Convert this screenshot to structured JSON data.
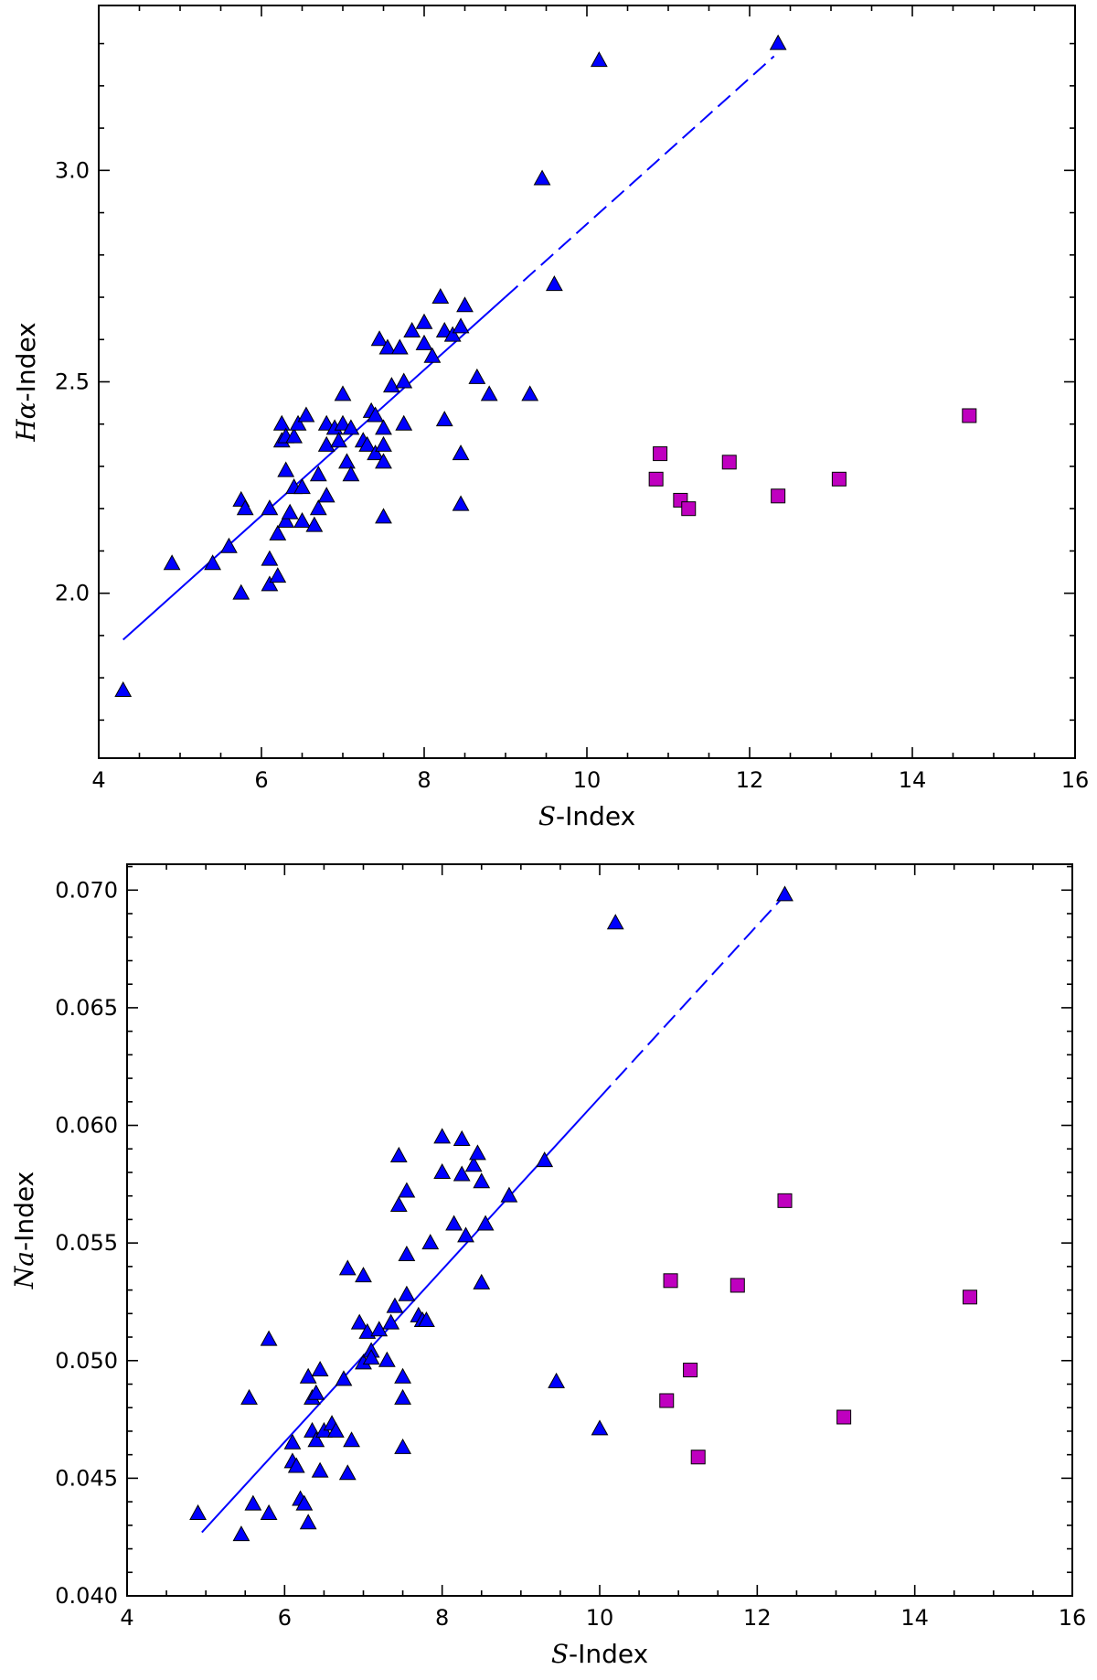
{
  "chart_data": [
    {
      "type": "scatter",
      "xlabel_math": "S",
      "xlabel_text": "-Index",
      "ylabel_math": "Hα",
      "ylabel_text": "-Index",
      "xlim": [
        4,
        16
      ],
      "ylim": [
        1.61,
        3.39
      ],
      "xticks": [
        "4",
        "6",
        "8",
        "10",
        "12",
        "14",
        "16"
      ],
      "yticks": [
        "2.0",
        "2.5",
        "3.0"
      ],
      "ytick_values": [
        2.0,
        2.5,
        3.0
      ],
      "grid": false,
      "fit_line": {
        "x": [
          4.3,
          12.3
        ],
        "y": [
          1.89,
          3.27
        ],
        "dashed_from_x": 9.0
      },
      "series": [
        {
          "marker": "triangle",
          "color": "#0000ff",
          "points": [
            [
              4.3,
              1.77
            ],
            [
              4.9,
              2.07
            ],
            [
              5.4,
              2.07
            ],
            [
              5.6,
              2.11
            ],
            [
              5.75,
              2.22
            ],
            [
              5.8,
              2.2
            ],
            [
              5.75,
              2.0
            ],
            [
              6.1,
              2.02
            ],
            [
              6.1,
              2.08
            ],
            [
              6.1,
              2.2
            ],
            [
              6.2,
              2.04
            ],
            [
              6.2,
              2.14
            ],
            [
              6.25,
              2.36
            ],
            [
              6.25,
              2.4
            ],
            [
              6.3,
              2.17
            ],
            [
              6.3,
              2.29
            ],
            [
              6.3,
              2.37
            ],
            [
              6.35,
              2.19
            ],
            [
              6.4,
              2.25
            ],
            [
              6.4,
              2.37
            ],
            [
              6.45,
              2.4
            ],
            [
              6.5,
              2.17
            ],
            [
              6.5,
              2.25
            ],
            [
              6.55,
              2.42
            ],
            [
              6.65,
              2.16
            ],
            [
              6.7,
              2.2
            ],
            [
              6.7,
              2.28
            ],
            [
              6.8,
              2.35
            ],
            [
              6.8,
              2.4
            ],
            [
              6.8,
              2.23
            ],
            [
              6.9,
              2.39
            ],
            [
              6.95,
              2.36
            ],
            [
              7.0,
              2.4
            ],
            [
              7.0,
              2.47
            ],
            [
              7.05,
              2.31
            ],
            [
              7.1,
              2.39
            ],
            [
              7.1,
              2.28
            ],
            [
              7.25,
              2.36
            ],
            [
              7.3,
              2.35
            ],
            [
              7.35,
              2.43
            ],
            [
              7.4,
              2.33
            ],
            [
              7.4,
              2.42
            ],
            [
              7.45,
              2.6
            ],
            [
              7.5,
              2.18
            ],
            [
              7.5,
              2.31
            ],
            [
              7.5,
              2.35
            ],
            [
              7.5,
              2.39
            ],
            [
              7.55,
              2.58
            ],
            [
              7.6,
              2.49
            ],
            [
              7.7,
              2.58
            ],
            [
              7.75,
              2.4
            ],
            [
              7.75,
              2.5
            ],
            [
              7.85,
              2.62
            ],
            [
              8.0,
              2.64
            ],
            [
              8.0,
              2.59
            ],
            [
              8.1,
              2.56
            ],
            [
              8.2,
              2.7
            ],
            [
              8.25,
              2.62
            ],
            [
              8.25,
              2.41
            ],
            [
              8.35,
              2.61
            ],
            [
              8.45,
              2.63
            ],
            [
              8.5,
              2.68
            ],
            [
              8.45,
              2.33
            ],
            [
              8.45,
              2.21
            ],
            [
              8.65,
              2.51
            ],
            [
              8.8,
              2.47
            ],
            [
              9.3,
              2.47
            ],
            [
              9.45,
              2.98
            ],
            [
              9.6,
              2.73
            ],
            [
              10.15,
              3.26
            ],
            [
              12.35,
              3.3
            ]
          ]
        },
        {
          "marker": "square",
          "color": "#bf00bf",
          "points": [
            [
              10.85,
              2.27
            ],
            [
              10.9,
              2.33
            ],
            [
              11.15,
              2.22
            ],
            [
              11.25,
              2.2
            ],
            [
              11.75,
              2.31
            ],
            [
              12.35,
              2.23
            ],
            [
              13.1,
              2.27
            ],
            [
              14.7,
              2.42
            ]
          ]
        }
      ]
    },
    {
      "type": "scatter",
      "xlabel_math": "S",
      "xlabel_text": "-Index",
      "ylabel_math": "Na",
      "ylabel_text": "-Index",
      "xlim": [
        4,
        16
      ],
      "ylim": [
        0.04,
        0.0711
      ],
      "xticks": [
        "4",
        "6",
        "8",
        "10",
        "12",
        "14",
        "16"
      ],
      "yticks": [
        "0.040",
        "0.045",
        "0.050",
        "0.055",
        "0.060",
        "0.065",
        "0.070"
      ],
      "ytick_values": [
        0.04,
        0.045,
        0.05,
        0.055,
        0.06,
        0.065,
        0.07
      ],
      "grid": false,
      "fit_line": {
        "x": [
          4.95,
          12.3
        ],
        "y": [
          0.0427,
          0.0696
        ],
        "dashed_from_x": 10.0
      },
      "series": [
        {
          "marker": "triangle",
          "color": "#0000ff",
          "points": [
            [
              4.9,
              0.0435
            ],
            [
              5.45,
              0.0426
            ],
            [
              5.55,
              0.0484
            ],
            [
              5.6,
              0.0439
            ],
            [
              5.8,
              0.0435
            ],
            [
              5.8,
              0.0509
            ],
            [
              6.1,
              0.0465
            ],
            [
              6.1,
              0.0457
            ],
            [
              6.15,
              0.0455
            ],
            [
              6.2,
              0.0441
            ],
            [
              6.25,
              0.0439
            ],
            [
              6.3,
              0.0431
            ],
            [
              6.3,
              0.0493
            ],
            [
              6.35,
              0.0484
            ],
            [
              6.35,
              0.047
            ],
            [
              6.4,
              0.0486
            ],
            [
              6.4,
              0.0466
            ],
            [
              6.45,
              0.0496
            ],
            [
              6.45,
              0.0453
            ],
            [
              6.5,
              0.047
            ],
            [
              6.6,
              0.0473
            ],
            [
              6.65,
              0.047
            ],
            [
              6.75,
              0.0492
            ],
            [
              6.8,
              0.0539
            ],
            [
              6.8,
              0.0452
            ],
            [
              6.85,
              0.0466
            ],
            [
              6.95,
              0.0516
            ],
            [
              7.0,
              0.0499
            ],
            [
              7.0,
              0.0536
            ],
            [
              7.05,
              0.0512
            ],
            [
              7.1,
              0.0504
            ],
            [
              7.1,
              0.0501
            ],
            [
              7.2,
              0.0513
            ],
            [
              7.3,
              0.05
            ],
            [
              7.35,
              0.0516
            ],
            [
              7.4,
              0.0523
            ],
            [
              7.45,
              0.0566
            ],
            [
              7.45,
              0.0587
            ],
            [
              7.5,
              0.0493
            ],
            [
              7.5,
              0.0484
            ],
            [
              7.5,
              0.0463
            ],
            [
              7.55,
              0.0572
            ],
            [
              7.55,
              0.0545
            ],
            [
              7.55,
              0.0528
            ],
            [
              7.7,
              0.0519
            ],
            [
              7.75,
              0.0517
            ],
            [
              7.8,
              0.0517
            ],
            [
              7.85,
              0.055
            ],
            [
              8.0,
              0.0595
            ],
            [
              8.0,
              0.058
            ],
            [
              8.15,
              0.0558
            ],
            [
              8.25,
              0.0594
            ],
            [
              8.25,
              0.0579
            ],
            [
              8.3,
              0.0553
            ],
            [
              8.4,
              0.0583
            ],
            [
              8.45,
              0.0588
            ],
            [
              8.5,
              0.0576
            ],
            [
              8.5,
              0.0533
            ],
            [
              8.55,
              0.0558
            ],
            [
              8.85,
              0.057
            ],
            [
              9.3,
              0.0585
            ],
            [
              9.45,
              0.0491
            ],
            [
              10.0,
              0.0471
            ],
            [
              10.2,
              0.0686
            ],
            [
              12.35,
              0.0698
            ]
          ]
        },
        {
          "marker": "square",
          "color": "#bf00bf",
          "points": [
            [
              10.85,
              0.0483
            ],
            [
              10.9,
              0.0534
            ],
            [
              11.15,
              0.0496
            ],
            [
              11.25,
              0.0459
            ],
            [
              11.75,
              0.0532
            ],
            [
              12.35,
              0.0568
            ],
            [
              13.1,
              0.0476
            ],
            [
              14.7,
              0.0527
            ]
          ]
        }
      ]
    }
  ]
}
